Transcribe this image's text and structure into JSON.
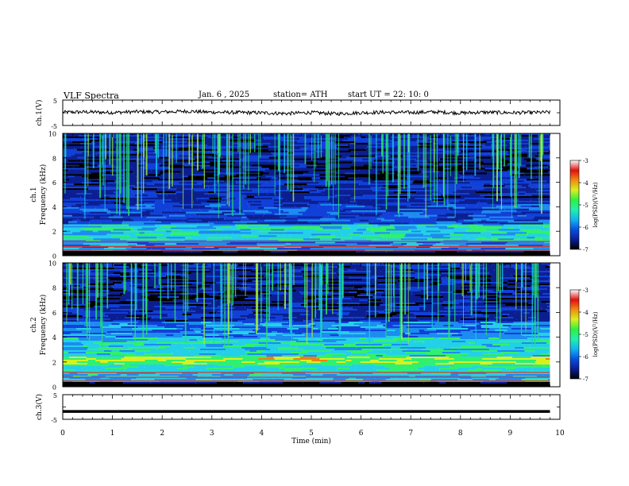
{
  "header": {
    "title": "VLF  Spectra",
    "date": "Jan.  6  , 2025",
    "station": "station= ATH",
    "start_ut": "start  UT  =    22: 10: 0"
  },
  "colors": {
    "spectrogram_scale": [
      "#000000",
      "#0b1e90",
      "#1040d8",
      "#1c8cf0",
      "#24d0e8",
      "#30f070",
      "#d8f020",
      "#f08010",
      "#e01010",
      "#f0f0f0"
    ],
    "trace": "#000000"
  },
  "chart_data": [
    {
      "type": "line",
      "name": "ch1-waveform",
      "ylabel": "ch.1(V)",
      "ylim": [
        -5,
        5
      ],
      "yticks": [
        "5",
        "-5"
      ],
      "x": [
        0,
        0.5,
        1,
        1.5,
        2,
        2.5,
        3,
        3.5,
        4,
        4.5,
        5,
        5.5,
        6,
        6.5,
        7,
        7.5,
        8,
        8.5,
        9,
        9.5,
        9.8
      ],
      "values": [
        0.2,
        0.3,
        0.1,
        0.4,
        0.3,
        0.6,
        0.2,
        0.1,
        0.0,
        -0.3,
        0.1,
        -0.4,
        0.0,
        0.2,
        0.1,
        0.3,
        -0.1,
        0.2,
        0.0,
        0.1,
        0.2
      ]
    },
    {
      "type": "heatmap",
      "name": "ch1-spectrogram",
      "ylabel": "Frequency  (kHz)",
      "channel_label": "ch.1",
      "ylim": [
        0,
        10
      ],
      "yticks": [
        "10",
        "8",
        "6",
        "4",
        "2",
        "0"
      ],
      "colorbar": {
        "label": "log(PSD)(V²/Hz)",
        "ticks": [
          "-3",
          "-4",
          "-5",
          "-6",
          "-7"
        ],
        "range": [
          -7,
          -3
        ]
      }
    },
    {
      "type": "heatmap",
      "name": "ch2-spectrogram",
      "ylabel": "Frequency  (kHz)",
      "channel_label": "ch.2",
      "ylim": [
        0,
        10
      ],
      "yticks": [
        "10",
        "8",
        "6",
        "4",
        "2",
        "0"
      ],
      "colorbar": {
        "label": "log(PSD)(V²/Hz)",
        "ticks": [
          "-3",
          "-4",
          "-5",
          "-6",
          "-7"
        ],
        "range": [
          -7,
          -3
        ]
      }
    },
    {
      "type": "line",
      "name": "ch3-waveform",
      "ylabel": "ch.3(V)",
      "ylim": [
        -5,
        5
      ],
      "yticks": [
        "5",
        "-5"
      ],
      "x": [
        0,
        9.8
      ],
      "values": [
        -1.8,
        -1.8
      ]
    }
  ],
  "xaxis": {
    "label": "Time  (min)",
    "ticks": [
      "0",
      "1",
      "2",
      "3",
      "4",
      "5",
      "6",
      "7",
      "8",
      "9",
      "10"
    ],
    "range": [
      0,
      10
    ],
    "data_end": 9.8
  }
}
